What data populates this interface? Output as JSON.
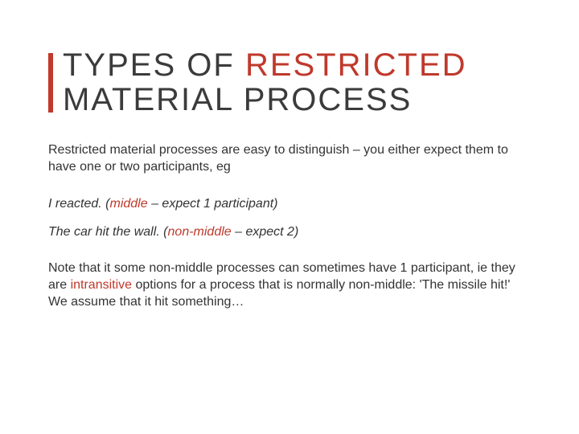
{
  "colors": {
    "accent": "#c0392b",
    "text": "#333333",
    "title": "#3b3b3b",
    "background": "#ffffff"
  },
  "typography": {
    "title_fontsize": 40,
    "title_letterspacing": 2,
    "body_fontsize": 16,
    "font_family": "Arial"
  },
  "title": {
    "line1_part1": "TYPES OF ",
    "line1_part2": "RESTRICTED",
    "line2": "MATERIAL PROCESS"
  },
  "intro": "Restricted material processes are easy to distinguish – you either expect them to have one or two participants, eg",
  "examples": [
    {
      "sentence": "I reacted.",
      "open_paren": " (",
      "keyword": "middle",
      "rest": " – expect 1 participant)"
    },
    {
      "sentence": "The car hit the wall.",
      "open_paren": " (",
      "keyword": "non-middle",
      "rest": " – expect 2)"
    }
  ],
  "note": {
    "part1": "Note that it some non-middle processes can sometimes have 1 participant, ie they are ",
    "keyword": "intransitive",
    "part2": " options for a process that is normally non-middle: 'The missile hit!' We assume that it hit something…"
  }
}
